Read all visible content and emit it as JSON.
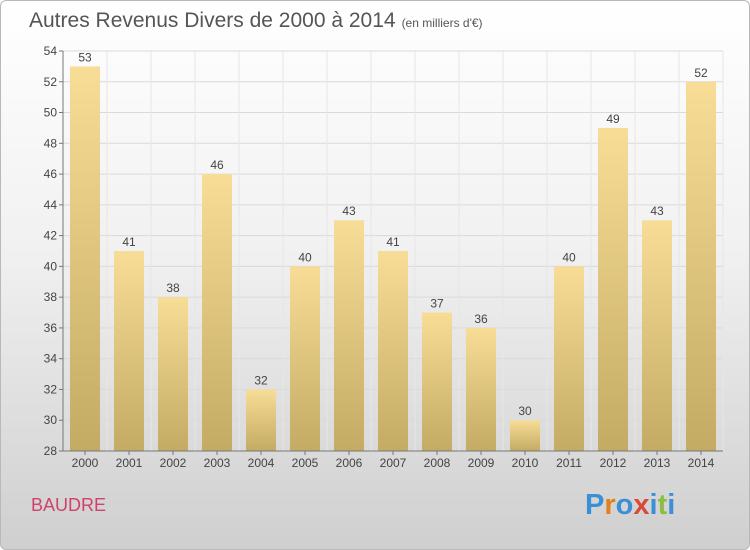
{
  "header": {
    "title": "Autres Revenus Divers de 2000 à 2014",
    "subtitle": "(en milliers d'€)"
  },
  "footer": {
    "place": "BAUDRE",
    "logo": "Proxiti"
  },
  "colors": {
    "bar_light": "#f7dd96",
    "bar_dark": "#c4ab64",
    "place_text": "#d0426d",
    "logo_letters": [
      "#3b8fd6",
      "#e2801e",
      "#3b8fd6",
      "#d94a3a",
      "#3b8fd6",
      "#8bbf3f",
      "#3b8fd6"
    ]
  },
  "chart_data": {
    "type": "bar",
    "categories": [
      "2000",
      "2001",
      "2002",
      "2003",
      "2004",
      "2005",
      "2006",
      "2007",
      "2008",
      "2009",
      "2010",
      "2011",
      "2012",
      "2013",
      "2014"
    ],
    "values": [
      53,
      41,
      38,
      46,
      32,
      40,
      43,
      41,
      37,
      36,
      30,
      40,
      49,
      43,
      52
    ],
    "ylim": [
      28,
      54
    ],
    "yticks": [
      28,
      30,
      32,
      34,
      36,
      38,
      40,
      42,
      44,
      46,
      48,
      50,
      52,
      54
    ],
    "grid": true,
    "data_labels": true
  }
}
